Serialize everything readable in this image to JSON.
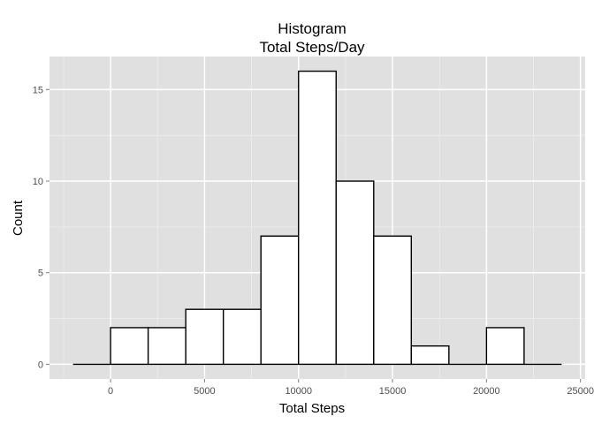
{
  "chart_data": {
    "type": "bar",
    "title_lines": [
      "Histogram",
      "Total Steps/Day"
    ],
    "xlabel": "Total Steps",
    "ylabel": "Count",
    "bin_width": 2000,
    "bins": [
      {
        "x0": -2000,
        "x1": 0,
        "count": 0
      },
      {
        "x0": 0,
        "x1": 2000,
        "count": 2
      },
      {
        "x0": 2000,
        "x1": 4000,
        "count": 2
      },
      {
        "x0": 4000,
        "x1": 6000,
        "count": 3
      },
      {
        "x0": 6000,
        "x1": 8000,
        "count": 3
      },
      {
        "x0": 8000,
        "x1": 10000,
        "count": 7
      },
      {
        "x0": 10000,
        "x1": 12000,
        "count": 16
      },
      {
        "x0": 12000,
        "x1": 14000,
        "count": 10
      },
      {
        "x0": 14000,
        "x1": 16000,
        "count": 7
      },
      {
        "x0": 16000,
        "x1": 18000,
        "count": 1
      },
      {
        "x0": 18000,
        "x1": 20000,
        "count": 0
      },
      {
        "x0": 20000,
        "x1": 22000,
        "count": 2
      },
      {
        "x0": 22000,
        "x1": 24000,
        "count": 0
      }
    ],
    "xlim": [
      -3250,
      25250
    ],
    "ylim": [
      -0.8,
      16.8
    ],
    "x_ticks": [
      0,
      5000,
      10000,
      15000,
      20000,
      25000
    ],
    "x_tick_labels": [
      "0",
      "5000",
      "10000",
      "15000",
      "20000",
      "25000"
    ],
    "y_ticks": [
      0,
      5,
      10,
      15
    ],
    "y_tick_labels": [
      "0",
      "5",
      "10",
      "15"
    ],
    "grid": true,
    "legend": "none",
    "colors": {
      "panel_background": "#e0e0e0",
      "grid_major": "#ffffff",
      "grid_minor": "#ececec",
      "bar_fill": "#ffffff",
      "bar_outline": "#000000",
      "tick_label": "#4d4d4d"
    }
  }
}
